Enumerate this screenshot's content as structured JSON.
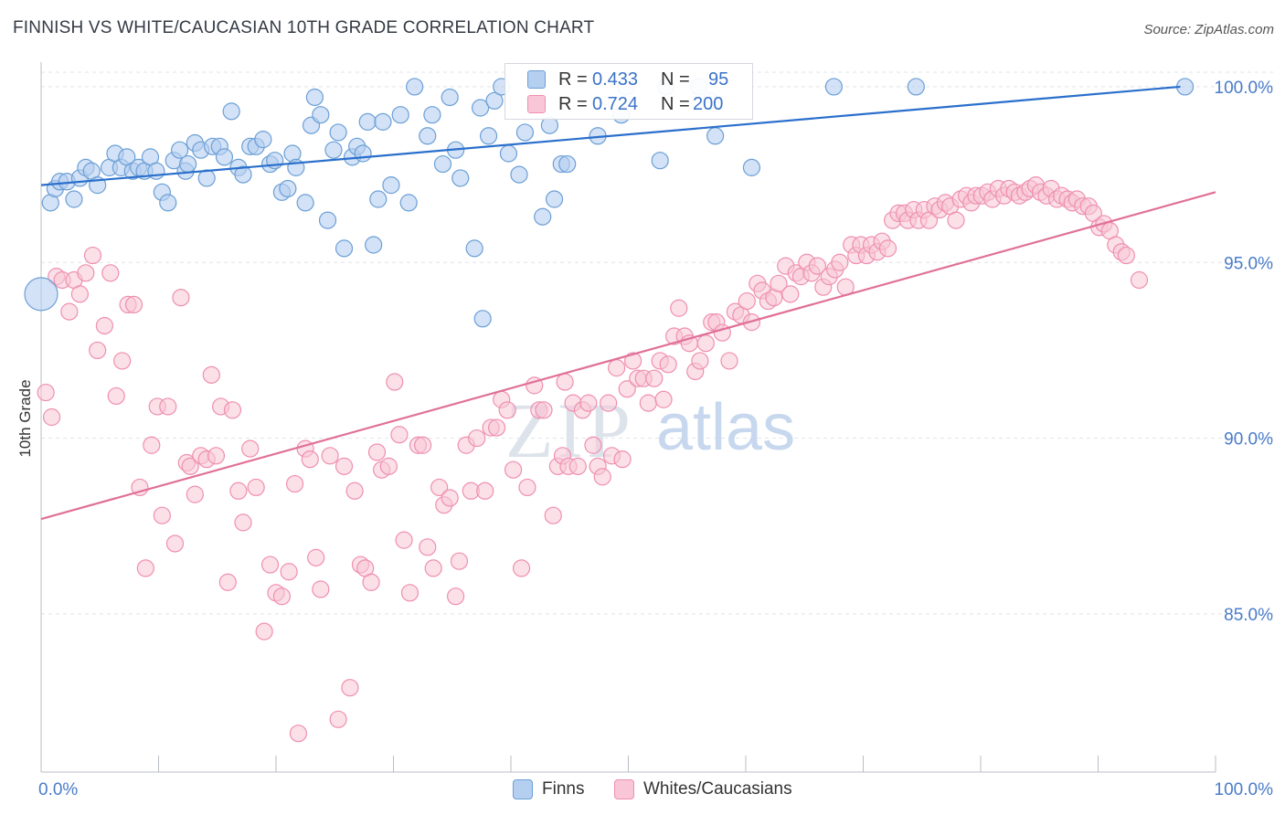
{
  "title": "FINNISH VS WHITE/CAUCASIAN 10TH GRADE CORRELATION CHART",
  "source": "Source: ZipAtlas.com",
  "watermark": {
    "zip": "ZIP",
    "atlas": "atlas"
  },
  "legend": {
    "rows": [
      {
        "r_label": "R =",
        "r_value": "0.433",
        "n_label": "N =",
        "n_value": "95",
        "color": "#6b9fd6"
      },
      {
        "r_label": "R =",
        "r_value": "0.724",
        "n_label": "N =",
        "n_value": "200",
        "color": "#ef8fb0"
      }
    ]
  },
  "bottom_legend": {
    "finns": "Finns",
    "whites": "Whites/Caucasians"
  },
  "chart_data": {
    "type": "scatter",
    "title": "FINNISH VS WHITE/CAUCASIAN 10TH GRADE CORRELATION CHART",
    "xlabel": "",
    "ylabel": "10th Grade",
    "xlim": [
      0,
      100
    ],
    "ylim": [
      80.5,
      100.7
    ],
    "x_tick_labels": [
      "0.0%",
      "100.0%"
    ],
    "y_tick_labels": [
      "100.0%",
      "95.0%",
      "90.0%",
      "85.0%"
    ],
    "y_tick_values": [
      100,
      95,
      90,
      85
    ],
    "grid": true,
    "colors": {
      "finns": "#6b9fd6",
      "whites": "#ef8fb0",
      "finns_line": "#2a6fcc",
      "whites_line": "#e07098",
      "axis_text": "#4a7cc9"
    },
    "series": [
      {
        "name": "Finns",
        "trend": {
          "x": [
            0,
            97
          ],
          "y": [
            97.2,
            100
          ]
        },
        "points": [
          [
            0.8,
            96.7
          ],
          [
            1.2,
            97.1
          ],
          [
            1.6,
            97.3
          ],
          [
            2.2,
            97.3
          ],
          [
            2.8,
            96.8
          ],
          [
            3.3,
            97.4
          ],
          [
            3.8,
            97.7
          ],
          [
            4.3,
            97.6
          ],
          [
            4.8,
            97.2
          ],
          [
            5.8,
            97.7
          ],
          [
            6.3,
            98.1
          ],
          [
            6.8,
            97.7
          ],
          [
            7.3,
            98.0
          ],
          [
            7.8,
            97.6
          ],
          [
            8.3,
            97.7
          ],
          [
            8.8,
            97.6
          ],
          [
            9.3,
            98.0
          ],
          [
            9.8,
            97.6
          ],
          [
            10.3,
            97.0
          ],
          [
            10.8,
            96.7
          ],
          [
            11.3,
            97.9
          ],
          [
            11.8,
            98.2
          ],
          [
            12.3,
            97.6
          ],
          [
            12.5,
            97.8
          ],
          [
            13.1,
            98.4
          ],
          [
            13.6,
            98.2
          ],
          [
            14.1,
            97.4
          ],
          [
            14.6,
            98.3
          ],
          [
            15.2,
            98.3
          ],
          [
            15.6,
            98.0
          ],
          [
            16.2,
            99.3
          ],
          [
            16.8,
            97.7
          ],
          [
            17.2,
            97.5
          ],
          [
            17.8,
            98.3
          ],
          [
            18.3,
            98.3
          ],
          [
            18.9,
            98.5
          ],
          [
            19.5,
            97.8
          ],
          [
            19.9,
            97.9
          ],
          [
            20.5,
            97.0
          ],
          [
            21.0,
            97.1
          ],
          [
            21.4,
            98.1
          ],
          [
            21.7,
            97.7
          ],
          [
            22.5,
            96.7
          ],
          [
            23.0,
            98.9
          ],
          [
            23.3,
            99.7
          ],
          [
            23.8,
            99.2
          ],
          [
            24.4,
            96.2
          ],
          [
            24.9,
            98.2
          ],
          [
            25.3,
            98.7
          ],
          [
            25.8,
            95.4
          ],
          [
            26.5,
            98.0
          ],
          [
            26.9,
            98.3
          ],
          [
            27.4,
            98.1
          ],
          [
            27.8,
            99.0
          ],
          [
            28.3,
            95.5
          ],
          [
            28.7,
            96.8
          ],
          [
            29.1,
            99.0
          ],
          [
            29.8,
            97.2
          ],
          [
            30.6,
            99.2
          ],
          [
            31.3,
            96.7
          ],
          [
            31.8,
            100
          ],
          [
            32.9,
            98.6
          ],
          [
            33.3,
            99.2
          ],
          [
            34.2,
            97.8
          ],
          [
            34.8,
            99.7
          ],
          [
            35.3,
            98.2
          ],
          [
            35.7,
            97.4
          ],
          [
            36.9,
            95.4
          ],
          [
            37.4,
            99.4
          ],
          [
            38.1,
            98.6
          ],
          [
            38.6,
            99.6
          ],
          [
            39.2,
            100
          ],
          [
            39.8,
            98.1
          ],
          [
            40.7,
            97.5
          ],
          [
            41.2,
            98.7
          ],
          [
            42.7,
            96.3
          ],
          [
            43.3,
            98.9
          ],
          [
            43.7,
            96.8
          ],
          [
            44.3,
            97.8
          ],
          [
            44.8,
            97.8
          ],
          [
            47.4,
            98.6
          ],
          [
            49.4,
            99.2
          ],
          [
            49.8,
            100
          ],
          [
            52.7,
            97.9
          ],
          [
            53.2,
            100
          ],
          [
            56.0,
            100
          ],
          [
            57.0,
            99.6
          ],
          [
            57.4,
            98.6
          ],
          [
            60.5,
            97.7
          ],
          [
            67.5,
            100
          ],
          [
            74.5,
            100
          ],
          [
            97.4,
            100
          ],
          [
            0,
            94.1
          ],
          [
            37.6,
            93.4
          ]
        ]
      },
      {
        "name": "Whites/Caucasians",
        "trend": {
          "x": [
            0,
            100
          ],
          "y": [
            87.7,
            97.0
          ]
        },
        "points": [
          [
            0.4,
            91.3
          ],
          [
            0.9,
            90.6
          ],
          [
            1.3,
            94.6
          ],
          [
            1.8,
            94.5
          ],
          [
            2.4,
            93.6
          ],
          [
            2.8,
            94.5
          ],
          [
            3.3,
            94.1
          ],
          [
            3.8,
            94.7
          ],
          [
            4.4,
            95.2
          ],
          [
            4.8,
            92.5
          ],
          [
            5.4,
            93.2
          ],
          [
            5.9,
            94.7
          ],
          [
            6.4,
            91.2
          ],
          [
            6.9,
            92.2
          ],
          [
            7.4,
            93.8
          ],
          [
            7.9,
            93.8
          ],
          [
            8.4,
            88.6
          ],
          [
            8.9,
            86.3
          ],
          [
            9.4,
            89.8
          ],
          [
            9.9,
            90.9
          ],
          [
            10.3,
            87.8
          ],
          [
            10.8,
            90.9
          ],
          [
            11.4,
            87.0
          ],
          [
            11.9,
            94.0
          ],
          [
            12.4,
            89.3
          ],
          [
            12.7,
            89.2
          ],
          [
            13.1,
            88.4
          ],
          [
            13.6,
            89.5
          ],
          [
            14.1,
            89.4
          ],
          [
            14.5,
            91.8
          ],
          [
            14.9,
            89.5
          ],
          [
            15.3,
            90.9
          ],
          [
            15.9,
            85.9
          ],
          [
            16.3,
            90.8
          ],
          [
            16.8,
            88.5
          ],
          [
            17.2,
            87.6
          ],
          [
            17.8,
            89.7
          ],
          [
            18.3,
            88.6
          ],
          [
            19.0,
            84.5
          ],
          [
            19.5,
            86.4
          ],
          [
            20.0,
            85.6
          ],
          [
            20.5,
            85.5
          ],
          [
            21.1,
            86.2
          ],
          [
            21.6,
            88.7
          ],
          [
            21.9,
            81.6
          ],
          [
            22.5,
            89.7
          ],
          [
            22.9,
            89.4
          ],
          [
            23.4,
            86.6
          ],
          [
            23.8,
            85.7
          ],
          [
            24.6,
            89.5
          ],
          [
            25.3,
            82.0
          ],
          [
            25.8,
            89.2
          ],
          [
            26.3,
            82.9
          ],
          [
            26.7,
            88.5
          ],
          [
            27.2,
            86.4
          ],
          [
            27.6,
            86.3
          ],
          [
            28.1,
            85.9
          ],
          [
            28.6,
            89.6
          ],
          [
            29.0,
            89.1
          ],
          [
            29.6,
            89.2
          ],
          [
            30.1,
            91.6
          ],
          [
            30.5,
            90.1
          ],
          [
            30.9,
            87.1
          ],
          [
            31.4,
            85.6
          ],
          [
            32.1,
            89.8
          ],
          [
            32.5,
            89.8
          ],
          [
            32.9,
            86.9
          ],
          [
            33.4,
            86.3
          ],
          [
            33.9,
            88.6
          ],
          [
            34.3,
            88.1
          ],
          [
            34.8,
            88.3
          ],
          [
            35.3,
            85.5
          ],
          [
            35.6,
            86.5
          ],
          [
            36.2,
            89.8
          ],
          [
            36.6,
            88.5
          ],
          [
            37.1,
            90.0
          ],
          [
            37.8,
            88.5
          ],
          [
            38.3,
            90.3
          ],
          [
            38.8,
            90.3
          ],
          [
            39.2,
            91.1
          ],
          [
            39.7,
            90.8
          ],
          [
            40.2,
            89.1
          ],
          [
            40.9,
            86.3
          ],
          [
            41.4,
            88.6
          ],
          [
            42.0,
            91.5
          ],
          [
            42.4,
            90.8
          ],
          [
            42.8,
            90.8
          ],
          [
            43.6,
            87.8
          ],
          [
            44.0,
            89.2
          ],
          [
            44.4,
            89.5
          ],
          [
            44.9,
            89.2
          ],
          [
            45.3,
            91.0
          ],
          [
            45.7,
            89.2
          ],
          [
            46.1,
            90.8
          ],
          [
            46.6,
            91.0
          ],
          [
            47.0,
            89.8
          ],
          [
            47.4,
            89.2
          ],
          [
            47.8,
            88.9
          ],
          [
            48.3,
            91.0
          ],
          [
            48.6,
            89.5
          ],
          [
            49.0,
            92.0
          ],
          [
            49.5,
            89.4
          ],
          [
            49.9,
            91.4
          ],
          [
            50.4,
            92.2
          ],
          [
            50.8,
            91.7
          ],
          [
            51.3,
            91.7
          ],
          [
            51.7,
            91.0
          ],
          [
            52.2,
            91.7
          ],
          [
            52.7,
            92.2
          ],
          [
            53.0,
            91.1
          ],
          [
            53.4,
            92.1
          ],
          [
            53.9,
            92.9
          ],
          [
            54.3,
            93.7
          ],
          [
            54.8,
            92.9
          ],
          [
            55.2,
            92.7
          ],
          [
            55.7,
            91.9
          ],
          [
            56.1,
            92.2
          ],
          [
            56.6,
            92.7
          ],
          [
            57.1,
            93.3
          ],
          [
            57.5,
            93.3
          ],
          [
            58.0,
            93.0
          ],
          [
            58.6,
            92.2
          ],
          [
            59.1,
            93.6
          ],
          [
            59.6,
            93.5
          ],
          [
            60.1,
            93.9
          ],
          [
            60.5,
            93.3
          ],
          [
            61.0,
            94.4
          ],
          [
            61.4,
            94.2
          ],
          [
            61.9,
            93.9
          ],
          [
            62.4,
            94.0
          ],
          [
            62.8,
            94.4
          ],
          [
            63.4,
            94.9
          ],
          [
            63.8,
            94.1
          ],
          [
            64.3,
            94.7
          ],
          [
            64.7,
            94.6
          ],
          [
            65.2,
            95.0
          ],
          [
            65.6,
            94.7
          ],
          [
            66.1,
            94.9
          ],
          [
            66.6,
            94.3
          ],
          [
            67.1,
            94.6
          ],
          [
            67.6,
            94.8
          ],
          [
            68.0,
            95.0
          ],
          [
            68.5,
            94.3
          ],
          [
            69.0,
            95.5
          ],
          [
            69.4,
            95.2
          ],
          [
            69.8,
            95.5
          ],
          [
            70.3,
            95.2
          ],
          [
            70.7,
            95.5
          ],
          [
            71.2,
            95.3
          ],
          [
            71.6,
            95.6
          ],
          [
            72.1,
            95.4
          ],
          [
            72.5,
            96.2
          ],
          [
            73.0,
            96.4
          ],
          [
            73.5,
            96.4
          ],
          [
            73.8,
            96.2
          ],
          [
            74.3,
            96.5
          ],
          [
            74.7,
            96.2
          ],
          [
            75.2,
            96.5
          ],
          [
            75.6,
            96.2
          ],
          [
            76.1,
            96.6
          ],
          [
            76.5,
            96.5
          ],
          [
            77.0,
            96.7
          ],
          [
            77.4,
            96.6
          ],
          [
            77.9,
            96.2
          ],
          [
            78.3,
            96.8
          ],
          [
            78.8,
            96.9
          ],
          [
            79.2,
            96.7
          ],
          [
            79.6,
            96.9
          ],
          [
            80.1,
            96.9
          ],
          [
            80.6,
            97.0
          ],
          [
            81.0,
            96.8
          ],
          [
            81.5,
            97.1
          ],
          [
            82.0,
            96.9
          ],
          [
            82.4,
            97.1
          ],
          [
            82.9,
            97.0
          ],
          [
            83.3,
            96.9
          ],
          [
            83.8,
            97.0
          ],
          [
            84.2,
            97.1
          ],
          [
            84.7,
            97.2
          ],
          [
            85.1,
            97.0
          ],
          [
            85.6,
            96.9
          ],
          [
            86.0,
            97.1
          ],
          [
            86.5,
            96.8
          ],
          [
            86.9,
            96.9
          ],
          [
            87.4,
            96.8
          ],
          [
            87.8,
            96.7
          ],
          [
            88.2,
            96.8
          ],
          [
            88.7,
            96.6
          ],
          [
            89.2,
            96.6
          ],
          [
            89.6,
            96.4
          ],
          [
            90.1,
            96.0
          ],
          [
            90.5,
            96.1
          ],
          [
            91.0,
            95.9
          ],
          [
            91.5,
            95.5
          ],
          [
            92.0,
            95.3
          ],
          [
            92.4,
            95.2
          ],
          [
            93.5,
            94.5
          ],
          [
            44.6,
            91.6
          ]
        ]
      }
    ]
  }
}
